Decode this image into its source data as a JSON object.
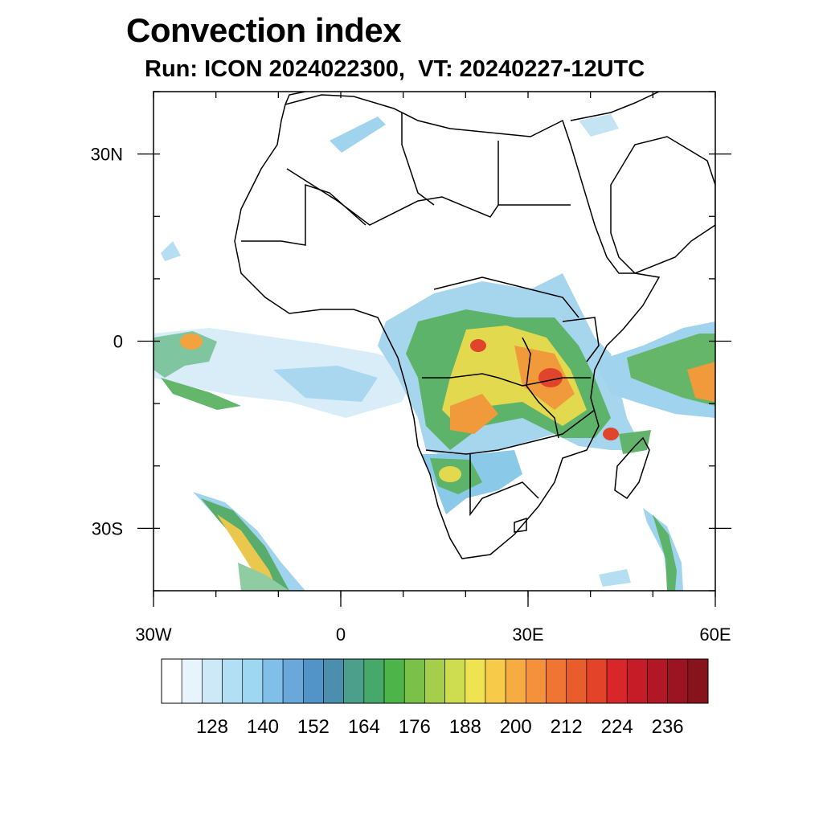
{
  "title": "Convection index",
  "subtitle": "Run: ICON 2024022300,  VT: 20240227-12UTC",
  "map": {
    "lon_range": [
      -30,
      60
    ],
    "lat_range": [
      -40,
      40
    ],
    "lat_ticks": [
      {
        "value": 30,
        "label": "30N"
      },
      {
        "value": 0,
        "label": "0"
      },
      {
        "value": -30,
        "label": "30S"
      }
    ],
    "lon_ticks": [
      {
        "value": -30,
        "label": "30W"
      },
      {
        "value": 0,
        "label": "0"
      },
      {
        "value": 30,
        "label": "30E"
      },
      {
        "value": 60,
        "label": "60E"
      }
    ]
  },
  "legend": {
    "colors": [
      "#ffffff",
      "#e8f4fb",
      "#cde9f7",
      "#b2dff3",
      "#9ed7f2",
      "#80bfe8",
      "#6aa8dc",
      "#5293c8",
      "#4a8fad",
      "#4c9f8a",
      "#46a969",
      "#4cb448",
      "#79c148",
      "#a6cd4c",
      "#cedd4f",
      "#efe351",
      "#f7ca4a",
      "#f6ac41",
      "#f5913a",
      "#f07432",
      "#e95c2c",
      "#e34329",
      "#d9262a",
      "#c61c28",
      "#b21726",
      "#9c1421",
      "#87141d"
    ],
    "labels": [
      "128",
      "140",
      "152",
      "164",
      "176",
      "188",
      "200",
      "212",
      "224",
      "236"
    ]
  },
  "field_colors": {
    "low": "#cfe8f5",
    "mid": "#7fbfe6",
    "green": "#4caf5a",
    "yellow": "#e6df4e",
    "orange": "#f29a3c",
    "red": "#e0452c"
  }
}
